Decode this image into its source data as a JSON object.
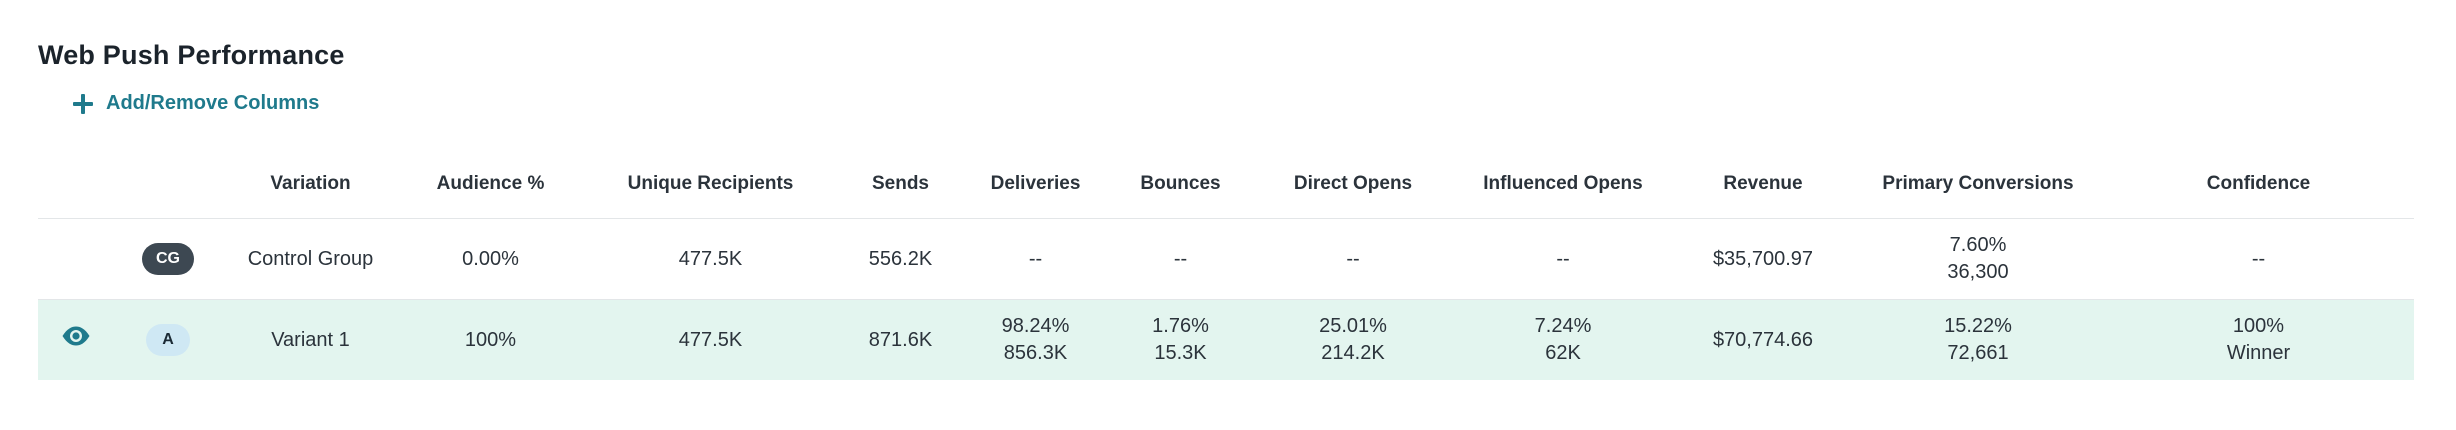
{
  "title": "Web Push Performance",
  "add_columns_label": "Add/Remove Columns",
  "colors": {
    "accent": "#1f7a8c",
    "winner_row_bg": "#e3f5ef",
    "winner_text": "#3aa57a",
    "cg_badge_bg": "#3d4852",
    "a_badge_bg": "#cfe8f4"
  },
  "columns": [
    "Variation",
    "Audience %",
    "Unique Recipients",
    "Sends",
    "Deliveries",
    "Bounces",
    "Direct Opens",
    "Influenced Opens",
    "Revenue",
    "Primary Conversions",
    "Confidence"
  ],
  "rows": [
    {
      "badge": "CG",
      "icon": "",
      "variation": "Control Group",
      "audience": "0.00%",
      "unique_recipients": "477.5K",
      "sends": "556.2K",
      "deliveries": [
        "--",
        ""
      ],
      "bounces": [
        "--",
        ""
      ],
      "direct_opens": [
        "--",
        ""
      ],
      "influenced_opens": [
        "--",
        ""
      ],
      "revenue": "$35,700.97",
      "primary_conversions": [
        "7.60%",
        "36,300"
      ],
      "confidence": [
        "--",
        ""
      ]
    },
    {
      "badge": "A",
      "icon": "eye-icon",
      "variation": "Variant 1",
      "audience": "100%",
      "unique_recipients": "477.5K",
      "sends": "871.6K",
      "deliveries": [
        "98.24%",
        "856.3K"
      ],
      "bounces": [
        "1.76%",
        "15.3K"
      ],
      "direct_opens": [
        "25.01%",
        "214.2K"
      ],
      "influenced_opens": [
        "7.24%",
        "62K"
      ],
      "revenue": "$70,774.66",
      "primary_conversions": [
        "15.22%",
        "72,661"
      ],
      "confidence": [
        "100%",
        "Winner"
      ]
    }
  ]
}
